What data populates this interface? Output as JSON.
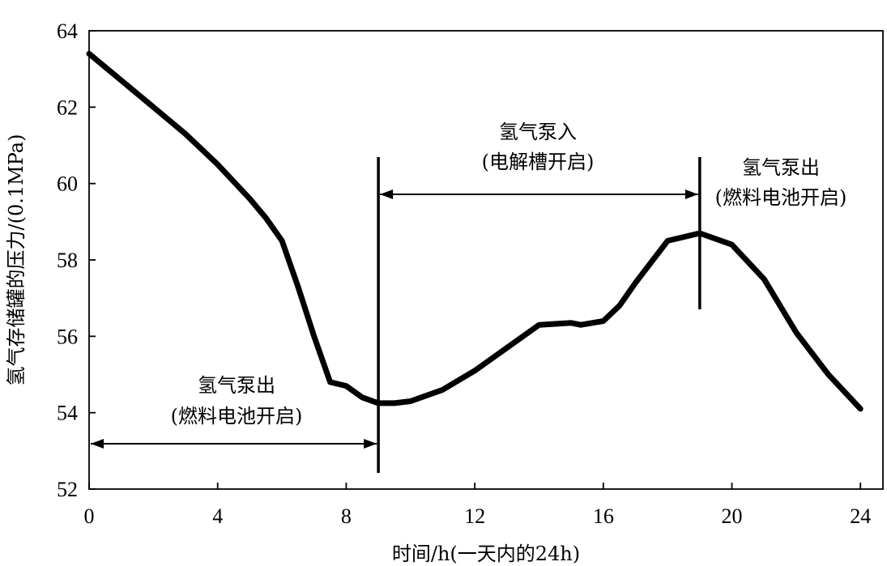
{
  "chart_data": {
    "type": "line",
    "title": "",
    "xlabel": "时间/h(一天内的24h)",
    "ylabel": "氢气存储罐的压力/(0.1MPa)",
    "xlim": [
      0,
      24.7
    ],
    "ylim": [
      52,
      64
    ],
    "xticks": [
      0,
      4,
      8,
      12,
      16,
      20,
      24
    ],
    "yticks": [
      52,
      54,
      56,
      58,
      60,
      62,
      64
    ],
    "grid": false,
    "series": [
      {
        "color": "#000000",
        "x": [
          0,
          1,
          2,
          3,
          4,
          5,
          5.5,
          6,
          6.5,
          7,
          7.5,
          8,
          8.5,
          9,
          9.5,
          10,
          11,
          12,
          13,
          14,
          15,
          15.3,
          16,
          16.5,
          17,
          18,
          19,
          20,
          21,
          22,
          23,
          24
        ],
        "values": [
          63.4,
          62.7,
          62.0,
          61.3,
          60.5,
          59.6,
          59.1,
          58.5,
          57.3,
          56.0,
          54.8,
          54.7,
          54.4,
          54.25,
          54.25,
          54.3,
          54.6,
          55.1,
          55.7,
          56.3,
          56.35,
          56.3,
          56.4,
          56.8,
          57.4,
          58.5,
          58.7,
          58.4,
          57.5,
          56.1,
          55.0,
          54.1
        ]
      }
    ],
    "annotations": [
      {
        "lines": [
          "氢气泵出",
          "(燃料电池开启)"
        ],
        "x_start": 0,
        "x_end": 9
      },
      {
        "lines": [
          "氢气泵入",
          "(电解槽开启)"
        ],
        "x_start": 9,
        "x_end": 19
      },
      {
        "lines": [
          "氢气泵出",
          "(燃料电池开启)"
        ],
        "x_start": 19,
        "x_end": 24
      }
    ],
    "vertical_markers": [
      9,
      19
    ]
  }
}
